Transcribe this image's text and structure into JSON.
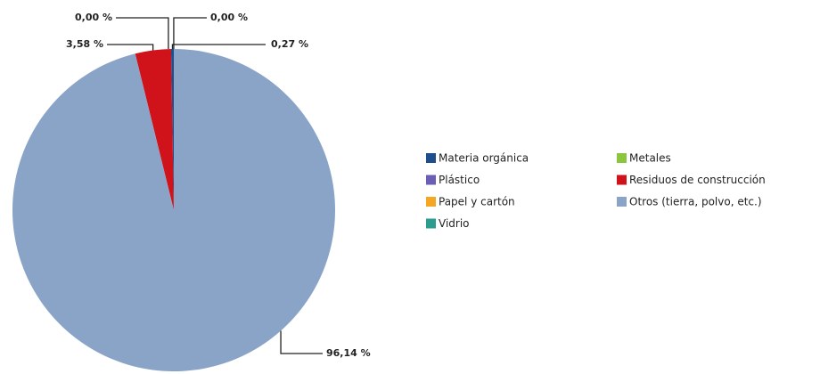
{
  "chart_data": {
    "type": "pie",
    "categories": [
      "Materia orgánica",
      "Plástico",
      "Papel y cartón",
      "Vidrio",
      "Metales",
      "Residuos de construcción",
      "Otros (tierra, polvo, etc.)"
    ],
    "values": [
      0.27,
      0,
      0,
      0,
      0,
      3.58,
      96.14
    ],
    "value_labels": [
      "0,27 %",
      "0,00 %",
      "0,00 %",
      null,
      null,
      "3,58 %",
      "96,14 %"
    ],
    "colors": [
      "#1f4e8c",
      "#6b5fb5",
      "#f5a623",
      "#2a9d8f",
      "#8cc63f",
      "#d0121b",
      "#8aa4c8"
    ]
  }
}
